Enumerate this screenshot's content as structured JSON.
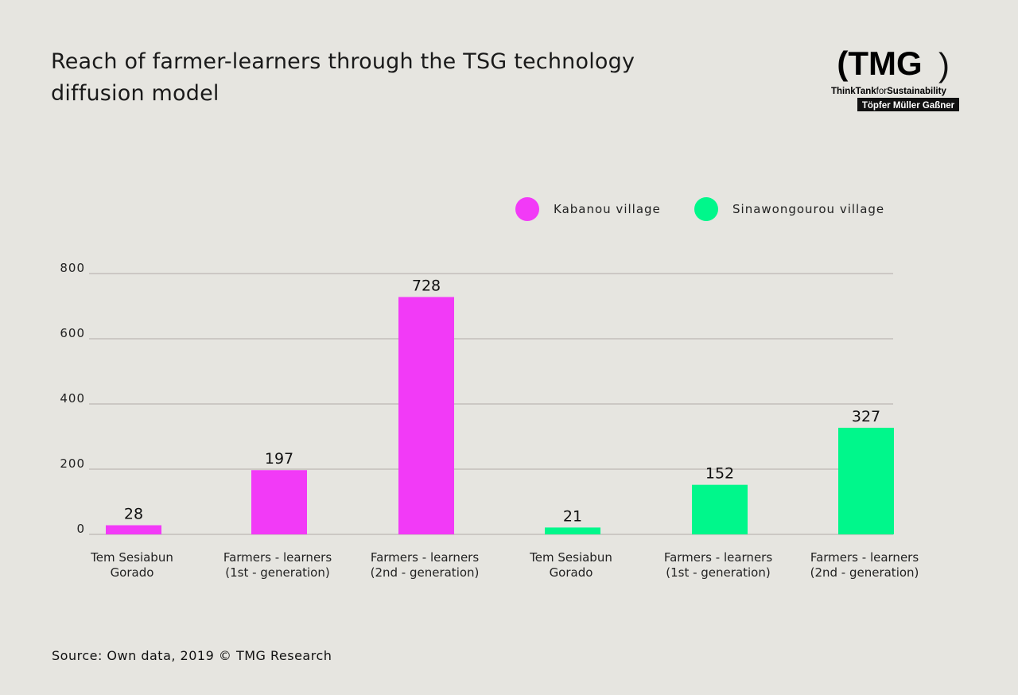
{
  "title": "Reach of farmer-learners through the TSG technology diffusion model",
  "logo": {
    "main": "(TMG)",
    "line1": "ThinkTankforSustainability",
    "line2": "Töpfer Müller Gaßner"
  },
  "source": "Source: Own data, 2019 © TMG Research",
  "colors": {
    "kabanou": "#f23af7",
    "sinawongourou": "#00f78b",
    "grid": "#bdb8b2",
    "background": "#e6e5e0"
  },
  "chart_data": {
    "type": "bar",
    "title": "Reach of farmer-learners through the TSG technology diffusion model",
    "categories": [
      [
        "Tem Sesiabun",
        "Gorado"
      ],
      [
        "Farmers - learners",
        "(1st - generation)"
      ],
      [
        "Farmers - learners",
        "(2nd - generation)"
      ],
      [
        "Tem Sesiabun",
        "Gorado"
      ],
      [
        "Farmers - learners",
        "(1st - generation)"
      ],
      [
        "Farmers - learners",
        "(2nd - generation)"
      ]
    ],
    "values": [
      28,
      197,
      728,
      21,
      152,
      327
    ],
    "series_of_bar": [
      "Kabanou village",
      "Kabanou village",
      "Kabanou village",
      "Sinawongourou village",
      "Sinawongourou village",
      "Sinawongourou village"
    ],
    "legend": [
      {
        "name": "Kabanou village",
        "color": "#f23af7"
      },
      {
        "name": "Sinawongourou village",
        "color": "#00f78b"
      }
    ],
    "legend_position": "top-right",
    "yticks": [
      0,
      200,
      400,
      600,
      800
    ],
    "ylim": [
      0,
      800
    ],
    "grid": true,
    "xlabel": "",
    "ylabel": ""
  }
}
